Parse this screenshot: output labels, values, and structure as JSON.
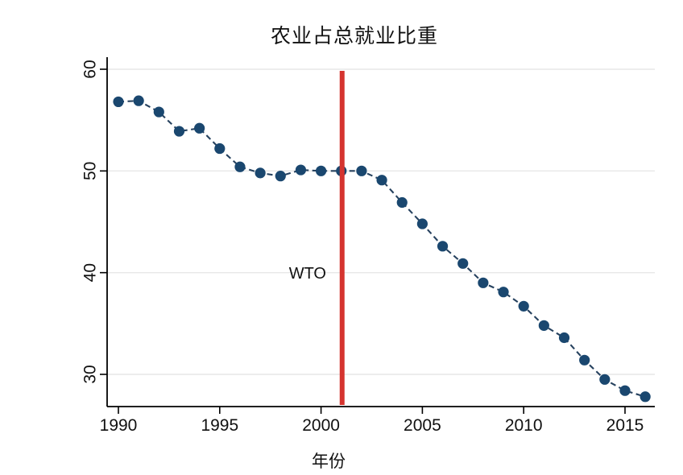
{
  "chart": {
    "title": "农业占总就业比重",
    "x_axis_title": "年份",
    "annotation_label": "WTO"
  },
  "chart_data": {
    "type": "line",
    "title": "农业占总就业比重",
    "xlabel": "年份",
    "ylabel": "",
    "x": [
      1990,
      1991,
      1992,
      1993,
      1994,
      1995,
      1996,
      1997,
      1998,
      1999,
      2000,
      2001,
      2002,
      2003,
      2004,
      2005,
      2006,
      2007,
      2008,
      2009,
      2010,
      2011,
      2012,
      2013,
      2014,
      2015,
      2016
    ],
    "values": [
      56.8,
      56.9,
      55.8,
      53.9,
      54.2,
      52.2,
      50.4,
      49.8,
      49.5,
      50.1,
      50.0,
      50.0,
      50.0,
      49.1,
      46.9,
      44.8,
      42.6,
      40.9,
      39.0,
      38.1,
      36.7,
      34.8,
      33.6,
      31.4,
      29.5,
      28.4,
      27.8
    ],
    "x_ticks": [
      1990,
      1995,
      2000,
      2005,
      2010,
      2015
    ],
    "y_ticks": [
      30,
      40,
      50,
      60
    ],
    "xlim": [
      1989.4,
      2016.5
    ],
    "ylim": [
      27,
      61
    ],
    "grid": "horizontal",
    "line_style": "dashed",
    "marker": "circle",
    "legend": "none",
    "annotations": [
      {
        "type": "vline",
        "x": 2001,
        "label": "WTO"
      }
    ],
    "colors": {
      "marker": "#1a476f",
      "line": "#27425f",
      "vline": "#d5342f",
      "grid": "#e7e7e7",
      "axis": "#000000",
      "text": "#111111"
    }
  }
}
